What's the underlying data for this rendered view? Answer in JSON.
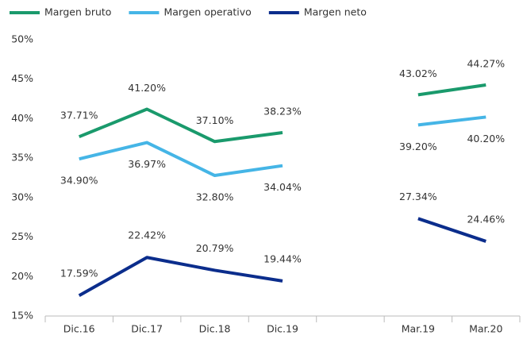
{
  "chart_data": {
    "type": "line",
    "categories": [
      "Dic.16",
      "Dic.17",
      "Dic.18",
      "Dic.19",
      null,
      "Mar.19",
      "Mar.20"
    ],
    "series": [
      {
        "name": "Margen bruto",
        "color": "#1a9a6c",
        "values": [
          37.71,
          41.2,
          37.1,
          38.23,
          null,
          43.02,
          44.27
        ],
        "value_labels": [
          "37.71%",
          "41.20%",
          "37.10%",
          "38.23%",
          null,
          "43.02%",
          "44.27%"
        ]
      },
      {
        "name": "Margen operativo",
        "color": "#45b5e6",
        "values": [
          34.9,
          36.97,
          32.8,
          34.04,
          null,
          39.2,
          40.2
        ],
        "value_labels": [
          "34.90%",
          "36.97%",
          "32.80%",
          "34.04%",
          null,
          "39.20%",
          "40.20%"
        ]
      },
      {
        "name": "Margen neto",
        "color": "#0b2d8c",
        "values": [
          17.59,
          22.42,
          20.79,
          19.44,
          null,
          27.34,
          24.46
        ],
        "value_labels": [
          "17.59%",
          "22.42%",
          "20.79%",
          "19.44%",
          null,
          "27.34%",
          "24.46%"
        ]
      }
    ],
    "ylim": [
      15,
      50
    ],
    "yticks": [
      {
        "value": 15,
        "label": "15%"
      },
      {
        "value": 20,
        "label": "20%"
      },
      {
        "value": 25,
        "label": "25%"
      },
      {
        "value": 30,
        "label": "30%"
      },
      {
        "value": 35,
        "label": "35%"
      },
      {
        "value": 40,
        "label": "40%"
      },
      {
        "value": 45,
        "label": "45%"
      },
      {
        "value": 50,
        "label": "50%"
      }
    ],
    "legend": "top",
    "grid": false
  }
}
